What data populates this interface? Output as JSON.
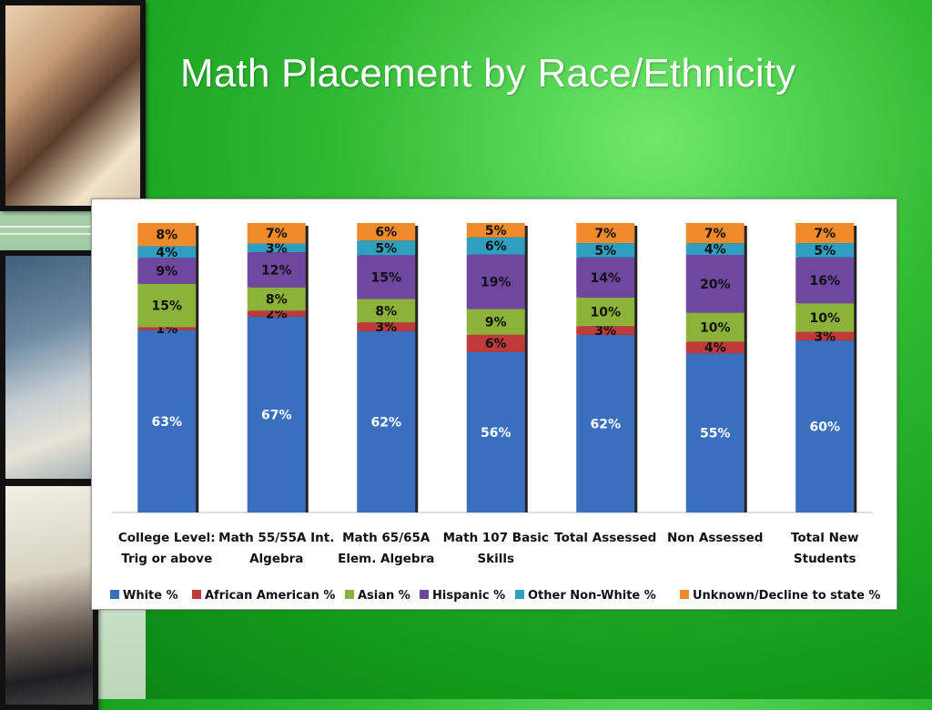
{
  "title": "Math Placement by Race/Ethnicity",
  "chart_data": {
    "type": "bar",
    "stacked": true,
    "categories": [
      [
        "College Level:",
        "Trig or above"
      ],
      [
        "Math 55/55A Int.",
        "Algebra"
      ],
      [
        "Math 65/65A",
        "Elem. Algebra"
      ],
      [
        "Math 107 Basic",
        "Skills"
      ],
      [
        "Total Assessed"
      ],
      [
        "Non Assessed"
      ],
      [
        "Total New",
        "Students"
      ]
    ],
    "series": [
      {
        "name": "White %",
        "color": "#3a6fbf",
        "values": [
          63,
          67,
          62,
          56,
          62,
          55,
          60
        ]
      },
      {
        "name": "African American %",
        "color": "#c0393b",
        "values": [
          1,
          2,
          3,
          6,
          3,
          4,
          3
        ]
      },
      {
        "name": "Asian %",
        "color": "#8db23a",
        "values": [
          15,
          8,
          8,
          9,
          10,
          10,
          10
        ]
      },
      {
        "name": "Hispanic %",
        "color": "#6f47a0",
        "values": [
          9,
          12,
          15,
          19,
          14,
          20,
          16
        ]
      },
      {
        "name": "Other Non-White %",
        "color": "#2e9fbf",
        "values": [
          4,
          3,
          5,
          6,
          5,
          4,
          5
        ]
      },
      {
        "name": "Unknown/Decline to state %",
        "color": "#f08a2b",
        "values": [
          8,
          7,
          6,
          5,
          7,
          7,
          7
        ]
      }
    ],
    "ylim": [
      0,
      100
    ],
    "grid": false,
    "legend": "bottom"
  }
}
